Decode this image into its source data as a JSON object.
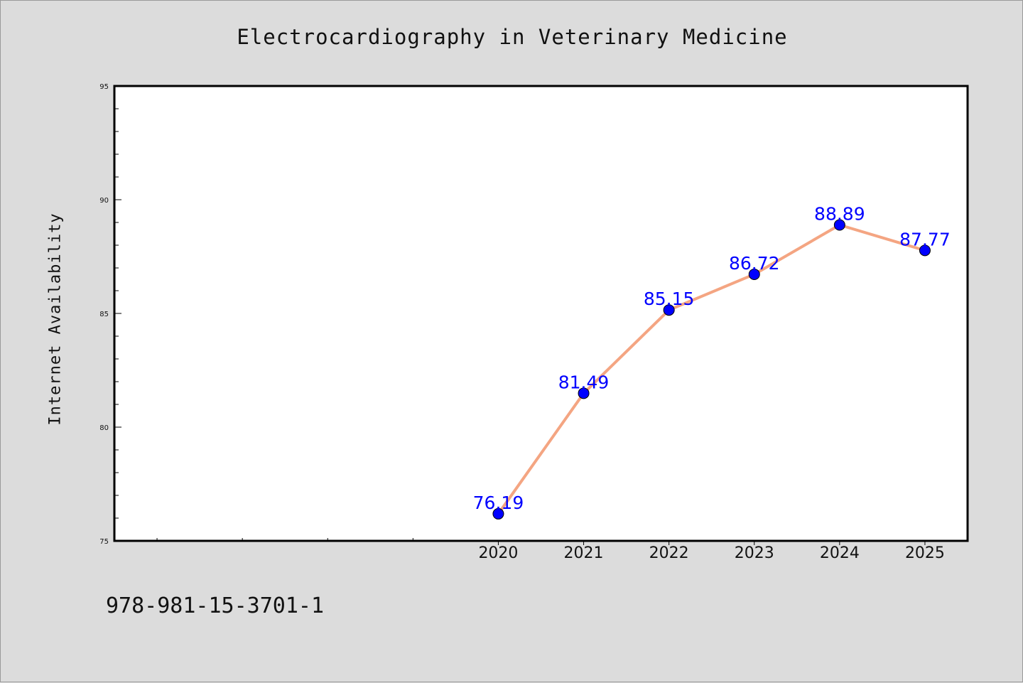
{
  "chart_data": {
    "type": "line",
    "title": "Electrocardiography in Veterinary Medicine",
    "xlabel": "",
    "ylabel": "Internet Availability",
    "x": [
      2020,
      2021,
      2022,
      2023,
      2024,
      2025
    ],
    "x_tick_labels": [
      "2020",
      "2021",
      "2022",
      "2023",
      "2024",
      "2025"
    ],
    "series": [
      {
        "values": [
          76.19,
          81.49,
          85.15,
          86.72,
          88.89,
          87.77
        ],
        "labels": [
          "76.19",
          "81.49",
          "85.15",
          "86.72",
          "88.89",
          "87.77"
        ],
        "color": "#f4a582",
        "marker_color": "#0000ff"
      }
    ],
    "ylim": [
      75,
      95
    ],
    "xlim": [
      2015.5,
      2025.5
    ],
    "y_ticks": [
      75,
      80,
      85,
      90,
      95
    ],
    "y_tick_labels": [
      "75",
      "80",
      "85",
      "90",
      "95"
    ],
    "grid": false,
    "legend": "none",
    "label_color": "#0000ff",
    "footnote": "978-981-15-3701-1"
  }
}
